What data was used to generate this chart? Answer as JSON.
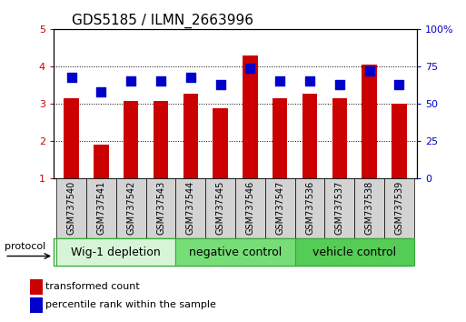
{
  "title": "GDS5185 / ILMN_2663996",
  "samples": [
    "GSM737540",
    "GSM737541",
    "GSM737542",
    "GSM737543",
    "GSM737544",
    "GSM737545",
    "GSM737546",
    "GSM737547",
    "GSM737536",
    "GSM737537",
    "GSM737538",
    "GSM737539"
  ],
  "red_values": [
    3.15,
    1.92,
    3.07,
    3.07,
    3.28,
    2.88,
    4.28,
    3.15,
    3.28,
    3.15,
    4.05,
    3.0
  ],
  "blue_values": [
    68,
    58,
    65,
    65,
    68,
    63,
    74,
    65,
    65,
    63,
    72,
    63
  ],
  "groups": [
    {
      "label": "Wig-1 depletion",
      "start": 0,
      "end": 4,
      "color": "#d6f5d6"
    },
    {
      "label": "negative control",
      "start": 4,
      "end": 8,
      "color": "#77dd77"
    },
    {
      "label": "vehicle control",
      "start": 8,
      "end": 12,
      "color": "#55cc55"
    }
  ],
  "ylim_left": [
    1,
    5
  ],
  "ylim_right": [
    0,
    100
  ],
  "yticks_left": [
    1,
    2,
    3,
    4,
    5
  ],
  "yticks_right": [
    0,
    25,
    50,
    75,
    100
  ],
  "red_color": "#cc0000",
  "blue_color": "#0000cc",
  "bar_width": 0.5,
  "marker_size": 55,
  "bg_color": "#ffffff",
  "label_red": "transformed count",
  "label_blue": "percentile rank within the sample",
  "protocol_label": "protocol",
  "label_box_color": "#d3d3d3",
  "group_border_color": "#33aa33",
  "title_fontsize": 11,
  "axis_fontsize": 8,
  "sample_fontsize": 7,
  "group_fontsize": 9,
  "legend_fontsize": 8
}
